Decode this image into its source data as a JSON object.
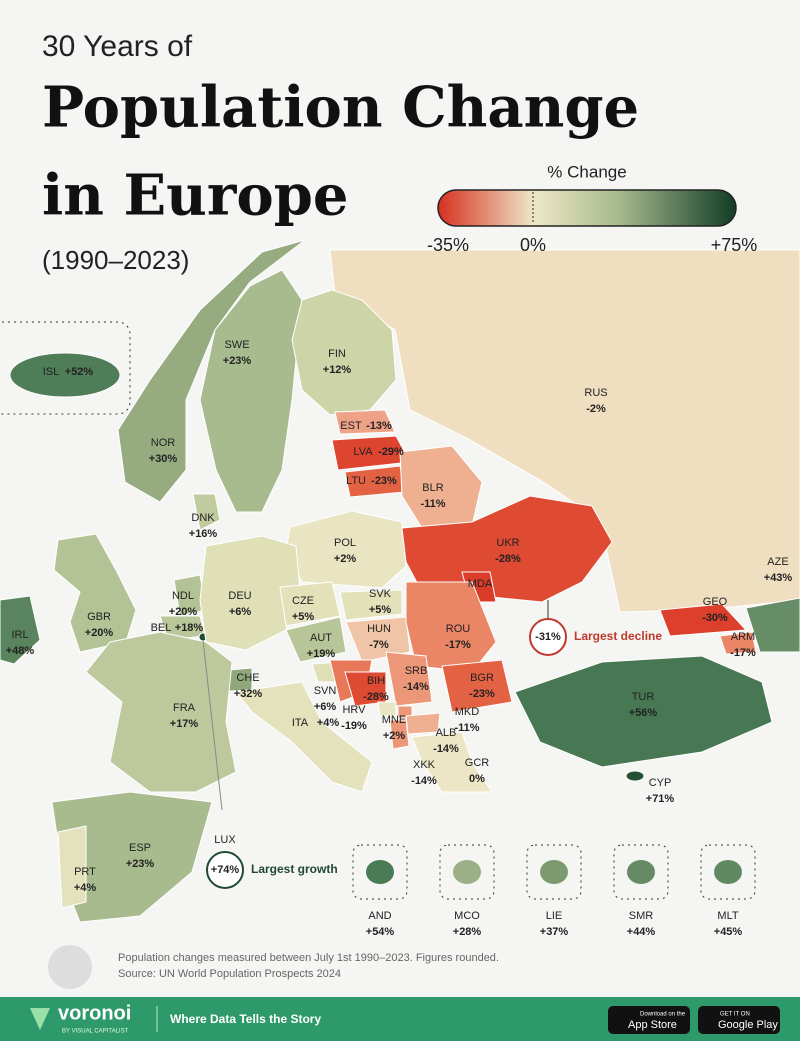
{
  "header": {
    "kicker": "30 Years of",
    "title_line1": "Population Change",
    "title_line2": "in Europe",
    "years": "(1990–2023)"
  },
  "legend": {
    "title": "% Change",
    "ticks": [
      "-35%",
      "0%",
      "+75%"
    ]
  },
  "countries": [
    {
      "code": "RUS",
      "change": "-2%",
      "color": "#efdfc0"
    },
    {
      "code": "ISL",
      "change": "+52%",
      "color": "#4f7d57"
    },
    {
      "code": "NOR",
      "change": "+30%",
      "color": "#96ac80"
    },
    {
      "code": "SWE",
      "change": "+23%",
      "color": "#a8bb8e"
    },
    {
      "code": "FIN",
      "change": "+12%",
      "color": "#cdd4a8"
    },
    {
      "code": "EST",
      "change": "-13%",
      "color": "#eea287"
    },
    {
      "code": "LVA",
      "change": "-29%",
      "color": "#de4530"
    },
    {
      "code": "LTU",
      "change": "-23%",
      "color": "#e46244"
    },
    {
      "code": "BLR",
      "change": "-11%",
      "color": "#efb092"
    },
    {
      "code": "DNK",
      "change": "+16%",
      "color": "#c0cb9e"
    },
    {
      "code": "POL",
      "change": "+2%",
      "color": "#e9e5c3"
    },
    {
      "code": "UKR",
      "change": "-28%",
      "color": "#df4a33"
    },
    {
      "code": "MDA",
      "change": "-31%",
      "color": "#db3c2a"
    },
    {
      "code": "GEO",
      "change": "-30%",
      "color": "#dc402c"
    },
    {
      "code": "ARM",
      "change": "-17%",
      "color": "#ea8566"
    },
    {
      "code": "AZE",
      "change": "+43%",
      "color": "#678d66"
    },
    {
      "code": "GBR",
      "change": "+20%",
      "color": "#b4c396"
    },
    {
      "code": "IRL",
      "change": "+48%",
      "color": "#5a845d"
    },
    {
      "code": "NDL",
      "change": "+20%",
      "color": "#b4c396"
    },
    {
      "code": "BEL",
      "change": "+18%",
      "color": "#bac79a"
    },
    {
      "code": "LUX",
      "change": "+74%",
      "color": "#1f4a31"
    },
    {
      "code": "DEU",
      "change": "+6%",
      "color": "#dfdfb8"
    },
    {
      "code": "CZE",
      "change": "+5%",
      "color": "#e2e1ba"
    },
    {
      "code": "SVK",
      "change": "+5%",
      "color": "#e2e1ba"
    },
    {
      "code": "AUT",
      "change": "+19%",
      "color": "#b7c598"
    },
    {
      "code": "HUN",
      "change": "-7%",
      "color": "#f0c4a6"
    },
    {
      "code": "ROU",
      "change": "-17%",
      "color": "#ea8566"
    },
    {
      "code": "CHE",
      "change": "+32%",
      "color": "#8ea77b"
    },
    {
      "code": "SVN",
      "change": "+6%",
      "color": "#dfdfb8"
    },
    {
      "code": "HRV",
      "change": "-19%",
      "color": "#e8785a"
    },
    {
      "code": "BIH",
      "change": "-28%",
      "color": "#df4a33"
    },
    {
      "code": "SRB",
      "change": "-14%",
      "color": "#ed9779"
    },
    {
      "code": "MNE",
      "change": "+2%",
      "color": "#e9e5c3"
    },
    {
      "code": "XKK",
      "change": "-14%",
      "color": "#ed9779"
    },
    {
      "code": "MKD",
      "change": "-11%",
      "color": "#efb092"
    },
    {
      "code": "ALB",
      "change": "-14%",
      "color": "#ed9779"
    },
    {
      "code": "BGR",
      "change": "-23%",
      "color": "#e46244"
    },
    {
      "code": "GCR",
      "change": "0%",
      "color": "#ede6c6"
    },
    {
      "code": "TUR",
      "change": "+56%",
      "color": "#477853"
    },
    {
      "code": "CYP",
      "change": "+71%",
      "color": "#265036"
    },
    {
      "code": "ITA",
      "change": "+4%",
      "color": "#e4e2bc"
    },
    {
      "code": "FRA",
      "change": "+17%",
      "color": "#bdc99c"
    },
    {
      "code": "ESP",
      "change": "+23%",
      "color": "#a8bb8e"
    },
    {
      "code": "PRT",
      "change": "+4%",
      "color": "#e4e2bc"
    }
  ],
  "callouts": {
    "decline": "Largest decline",
    "growth": "Largest growth"
  },
  "microstates": [
    {
      "code": "AND",
      "change": "+54%",
      "color": "#4b7b55"
    },
    {
      "code": "MCO",
      "change": "+28%",
      "color": "#9cb085"
    },
    {
      "code": "LIE",
      "change": "+37%",
      "color": "#7b9a70"
    },
    {
      "code": "SMR",
      "change": "+44%",
      "color": "#658b64"
    },
    {
      "code": "MLT",
      "change": "+45%",
      "color": "#618961"
    }
  ],
  "footer": {
    "note": "Population changes measured between July 1st 1990–2023. Figures rounded.",
    "source": "Source: UN World Population Prospects 2024",
    "brand": "voronoi",
    "brand_sub": "BY VISUAL CAPITALIST",
    "tagline": "Where Data Tells the Story",
    "app_store_small": "Download on the",
    "app_store": "App Store",
    "google_small": "GET IT ON",
    "google": "Google Play"
  }
}
